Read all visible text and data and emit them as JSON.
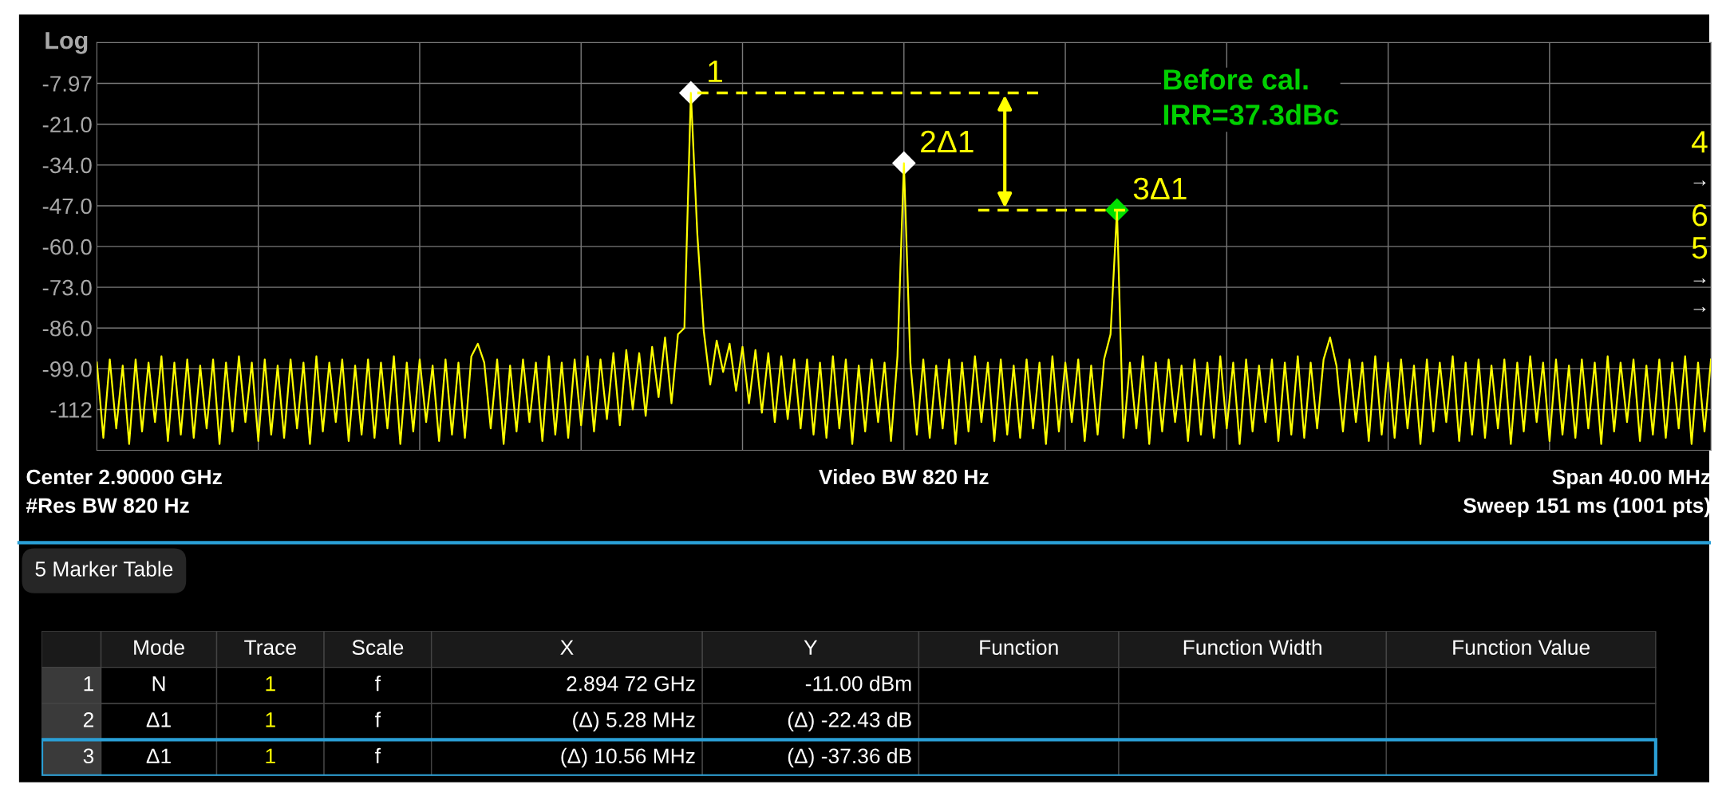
{
  "chart_data": [
    {
      "type": "line",
      "ylabel": "Log",
      "ylim": [
        -124.97,
        5.03
      ],
      "categories": [
        null,
        null,
        null,
        null,
        null,
        null,
        null,
        null,
        null,
        null,
        null,
        null,
        null,
        null,
        null,
        null,
        null,
        null,
        null,
        null,
        null,
        null,
        null,
        null,
        null,
        null,
        null,
        null,
        null,
        null,
        null,
        null,
        null,
        null,
        null,
        null,
        null,
        null,
        null,
        null,
        null,
        null,
        null,
        null,
        null,
        null,
        null,
        null,
        null,
        null,
        null,
        null,
        null,
        null,
        null,
        null,
        null,
        null,
        null,
        null,
        null,
        null,
        null,
        null,
        null,
        null,
        null,
        null,
        null,
        null,
        null,
        null,
        null,
        null,
        null,
        null,
        null,
        null,
        null,
        null,
        null,
        null,
        null,
        null,
        null,
        null,
        null,
        null,
        null,
        null,
        null,
        null,
        null,
        null,
        null,
        null,
        null,
        null,
        null,
        null,
        null,
        null,
        null,
        null,
        null,
        null,
        null,
        null,
        null,
        null,
        null,
        null,
        null,
        null,
        null,
        null,
        null,
        null,
        null,
        null,
        null,
        null,
        null,
        null,
        null,
        null,
        null,
        null,
        null,
        null,
        null,
        null,
        null,
        null,
        null,
        null,
        null,
        null,
        null,
        null,
        null,
        null,
        null,
        null,
        null,
        null,
        null,
        null,
        null,
        null,
        null,
        null,
        null,
        null,
        null,
        null,
        null,
        null,
        null,
        null,
        null,
        null,
        null,
        null,
        null,
        null,
        null,
        null,
        null,
        null,
        null,
        null,
        null,
        null,
        null,
        null,
        null,
        null,
        null,
        null,
        null,
        null,
        null,
        null,
        null,
        null,
        null,
        null,
        null,
        null,
        null,
        null,
        null,
        null,
        null,
        null,
        null,
        null,
        null,
        null,
        null,
        null,
        null,
        null,
        null,
        null,
        null,
        null,
        null,
        null,
        null,
        null,
        null,
        null,
        null,
        null,
        null,
        null,
        null,
        null,
        null,
        null,
        null,
        null,
        null,
        null,
        null,
        null,
        null,
        null,
        null,
        null,
        null,
        null,
        null,
        null,
        null,
        null,
        null,
        null,
        null,
        null,
        null,
        null,
        null,
        null,
        null,
        null,
        null,
        null,
        null
      ],
      "yticks": [
        -7.97,
        {
          "value": -21,
          "label": "-21.0"
        },
        {
          "value": -34,
          "label": "-34.0"
        },
        {
          "value": -47,
          "label": "-47.0"
        },
        {
          "value": -60,
          "label": "-60.0"
        },
        {
          "value": -73,
          "label": "-73.0"
        },
        {
          "value": -86,
          "label": "-86.0"
        },
        {
          "value": -99,
          "label": "-99.0"
        },
        -112
      ],
      "tick_labels": "y",
      "grid": true,
      "series": [
        {
          "type": "line",
          "color": "#ffff00",
          "marker": "none",
          "line_style": "solid",
          "values": [
            -97,
            -121,
            -96,
            -118,
            -98,
            -123,
            -96,
            -119,
            -97,
            -116,
            -95,
            -122,
            -97,
            -120,
            -96,
            -121,
            -98,
            -118,
            -96,
            -123,
            -97,
            -119,
            -95,
            -116,
            -97,
            -122,
            -96,
            -120,
            -98,
            -121,
            -96,
            -118,
            -97,
            -123,
            -95,
            -119,
            -97,
            -116,
            -96,
            -122,
            -98,
            -120,
            -96,
            -121,
            -97,
            -118,
            -95,
            -123,
            -97,
            -119,
            -96,
            -116,
            -98,
            -122,
            -96,
            -120,
            -97,
            -121,
            -95,
            -91,
            -97,
            -118,
            -96,
            -123,
            -98,
            -119,
            -96,
            -116,
            -97,
            -122,
            -95,
            -120,
            -97,
            -121,
            -96,
            -117,
            -95,
            -119,
            -96,
            -115,
            -94,
            -117,
            -93,
            -112,
            -94,
            -114,
            -92,
            -108,
            -89,
            -110,
            -88,
            -86,
            -11,
            -56,
            -87,
            -104,
            -90,
            -100,
            -91,
            -106,
            -92,
            -110,
            -93,
            -113,
            -94,
            -116,
            -95,
            -115,
            -96,
            -118,
            -96,
            -120,
            -97,
            -121,
            -95,
            -118,
            -96,
            -123,
            -98,
            -119,
            -96,
            -116,
            -97,
            -122,
            -95,
            -33.4,
            -97,
            -120,
            -96,
            -121,
            -98,
            -118,
            -96,
            -123,
            -97,
            -119,
            -95,
            -116,
            -97,
            -122,
            -96,
            -120,
            -98,
            -121,
            -96,
            -118,
            -97,
            -123,
            -95,
            -119,
            -97,
            -116,
            -96,
            -122,
            -98,
            -120,
            -96,
            -88,
            -48.4,
            -121,
            -97,
            -118,
            -95,
            -123,
            -97,
            -119,
            -96,
            -116,
            -98,
            -122,
            -96,
            -120,
            -97,
            -121,
            -95,
            -118,
            -97,
            -123,
            -96,
            -119,
            -98,
            -116,
            -96,
            -122,
            -97,
            -120,
            -95,
            -121,
            -97,
            -118,
            -96,
            -89,
            -98,
            -119,
            -96,
            -116,
            -97,
            -122,
            -95,
            -120,
            -97,
            -121,
            -96,
            -118,
            -98,
            -123,
            -96,
            -119,
            -97,
            -116,
            -95,
            -122,
            -97,
            -120,
            -96,
            -121,
            -98,
            -118,
            -96,
            -123,
            -97,
            -119,
            -95,
            -116,
            -97,
            -122,
            -96,
            -120,
            -98,
            -121,
            -96,
            -118,
            -97,
            -123,
            -95,
            -119,
            -97,
            -116,
            -96,
            -122,
            -98,
            -120,
            -96,
            -121,
            -97,
            -118,
            -95,
            -123,
            -97,
            -119,
            -96
          ]
        },
        {
          "type": "scatter",
          "marker": "diamond",
          "colors": [
            null,
            null,
            null,
            null,
            null,
            null,
            null,
            null,
            null,
            null,
            null,
            null,
            null,
            null,
            null,
            null,
            null,
            null,
            null,
            null,
            null,
            null,
            null,
            null,
            null,
            null,
            null,
            null,
            null,
            null,
            null,
            null,
            null,
            null,
            null,
            null,
            null,
            null,
            null,
            null,
            null,
            null,
            null,
            null,
            null,
            null,
            null,
            null,
            null,
            null,
            null,
            null,
            null,
            null,
            null,
            null,
            null,
            null,
            null,
            null,
            null,
            null,
            null,
            null,
            null,
            null,
            null,
            null,
            null,
            null,
            null,
            null,
            null,
            null,
            null,
            null,
            null,
            null,
            null,
            null,
            null,
            null,
            null,
            null,
            null,
            null,
            null,
            null,
            null,
            null,
            null,
            null,
            "#ffffff",
            null,
            null,
            null,
            null,
            null,
            null,
            null,
            null,
            null,
            null,
            null,
            null,
            null,
            null,
            null,
            null,
            null,
            null,
            null,
            null,
            null,
            null,
            null,
            null,
            null,
            null,
            null,
            null,
            null,
            null,
            null,
            null,
            "#ffffff",
            null,
            null,
            null,
            null,
            null,
            null,
            null,
            null,
            null,
            null,
            null,
            null,
            null,
            null,
            null,
            null,
            null,
            null,
            null,
            null,
            null,
            null,
            null,
            null,
            null,
            null,
            null,
            null,
            null,
            null,
            null,
            null,
            "#00e000",
            null,
            null,
            null,
            null,
            null,
            null,
            null,
            null,
            null,
            null,
            null,
            null,
            null,
            null,
            null,
            null,
            null,
            null,
            null,
            null,
            null,
            null,
            null,
            null,
            null,
            null,
            null,
            null,
            null,
            null,
            null,
            null,
            null,
            null,
            null,
            null,
            null,
            null,
            null,
            null,
            null,
            null,
            null,
            null,
            null,
            null,
            null,
            null,
            null,
            null,
            null,
            null,
            null,
            null,
            null,
            null,
            null,
            null,
            null,
            null,
            null,
            null,
            null,
            null,
            null,
            null,
            null,
            null,
            null,
            null,
            null,
            null,
            null,
            null,
            null,
            null,
            null,
            null,
            null,
            null,
            null,
            null,
            null,
            null,
            null,
            null,
            null,
            null,
            null,
            null,
            null,
            null
          ],
          "values": [
            null,
            null,
            null,
            null,
            null,
            null,
            null,
            null,
            null,
            null,
            null,
            null,
            null,
            null,
            null,
            null,
            null,
            null,
            null,
            null,
            null,
            null,
            null,
            null,
            null,
            null,
            null,
            null,
            null,
            null,
            null,
            null,
            null,
            null,
            null,
            null,
            null,
            null,
            null,
            null,
            null,
            null,
            null,
            null,
            null,
            null,
            null,
            null,
            null,
            null,
            null,
            null,
            null,
            null,
            null,
            null,
            null,
            null,
            null,
            null,
            null,
            null,
            null,
            null,
            null,
            null,
            null,
            null,
            null,
            null,
            null,
            null,
            null,
            null,
            null,
            null,
            null,
            null,
            null,
            null,
            null,
            null,
            null,
            null,
            null,
            null,
            null,
            null,
            null,
            null,
            null,
            null,
            -11,
            null,
            null,
            null,
            null,
            null,
            null,
            null,
            null,
            null,
            null,
            null,
            null,
            null,
            null,
            null,
            null,
            null,
            null,
            null,
            null,
            null,
            null,
            null,
            null,
            null,
            null,
            null,
            null,
            null,
            null,
            null,
            null,
            -33.4,
            null,
            null,
            null,
            null,
            null,
            null,
            null,
            null,
            null,
            null,
            null,
            null,
            null,
            null,
            null,
            null,
            null,
            null,
            null,
            null,
            null,
            null,
            null,
            null,
            null,
            null,
            null,
            null,
            null,
            null,
            null,
            null,
            -48.4,
            null,
            null,
            null,
            null,
            null,
            null,
            null,
            null,
            null,
            null,
            null,
            null,
            null,
            null,
            null,
            null,
            null,
            null,
            null,
            null,
            null,
            null,
            null,
            null,
            null,
            null,
            null,
            null,
            null,
            null,
            null,
            null,
            null,
            null,
            null,
            null,
            null,
            null,
            null,
            null,
            null,
            null,
            null,
            null,
            null,
            null,
            null,
            null,
            null,
            null,
            null,
            null,
            null,
            null,
            null,
            null,
            null,
            null,
            null,
            null,
            null,
            null,
            null,
            null,
            null,
            null,
            null,
            null,
            null,
            null,
            null,
            null,
            null,
            null,
            null,
            null,
            null,
            null,
            null,
            null,
            null,
            null,
            null,
            null,
            null,
            null,
            null,
            null,
            null,
            null,
            null,
            null
          ]
        }
      ],
      "ref_lines": [
        {
          "axis": "y",
          "value": -11,
          "color": "#ffff00",
          "line_style": "dashed"
        },
        {
          "axis": "y",
          "value": -48.4,
          "color": "#ffff00",
          "line_style": "dashed"
        }
      ],
      "annotations": [
        "1",
        "2Δ1",
        "3Δ1",
        "Before cal.\nIRR=37.3dBc",
        "4",
        "→",
        "6",
        "5",
        "→",
        "→",
        "Center 2.90000 GHz",
        "Video BW 820 Hz",
        "Span 40.00 MHz",
        "#Res BW 820 Hz",
        "Sweep 151 ms (1001 pts)"
      ]
    },
    {
      "type": "other",
      "title": "5 Marker Table",
      "categories": [
        null,
        "Mode",
        "Trace",
        "Scale",
        "X",
        "Y",
        "Function",
        "Function Width",
        "Function Value"
      ],
      "cell_labels": [
        [
          "1",
          "N",
          "1",
          "f",
          "2.894 72 GHz",
          "-11.00 dBm",
          null,
          null,
          null
        ],
        [
          "2",
          "Δ1",
          "1",
          "f",
          "(Δ) 5.28 MHz",
          "(Δ) -22.43 dB",
          null,
          null,
          null
        ],
        [
          "3",
          "Δ1",
          "1",
          "f",
          "(Δ) 10.56 MHz",
          "(Δ) -37.36 dB",
          null,
          null,
          null
        ]
      ]
    }
  ]
}
